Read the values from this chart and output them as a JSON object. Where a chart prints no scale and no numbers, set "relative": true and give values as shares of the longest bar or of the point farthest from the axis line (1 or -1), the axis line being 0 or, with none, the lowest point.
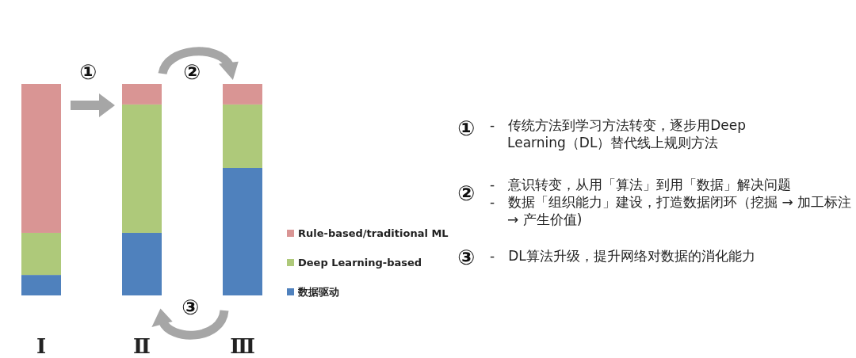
{
  "chart_data": {
    "type": "bar",
    "stacked": true,
    "relative": true,
    "legend": "right",
    "categories": [
      "Ⅰ",
      "Ⅱ",
      "Ⅲ"
    ],
    "series": [
      {
        "name": "数据驱动",
        "color": "#4f81bd",
        "values": [
          0.097,
          0.296,
          0.603
        ]
      },
      {
        "name": "Deep Learning-based",
        "color": "#aec97a",
        "values": [
          0.199,
          0.607,
          0.3
        ]
      },
      {
        "name": "Rule-based/traditional ML",
        "color": "#d99594",
        "values": [
          0.704,
          0.097,
          0.097
        ]
      }
    ],
    "annotations": [
      "①",
      "②",
      "③",
      "①",
      "-　传统方法到学习方法转变，逐步用Deep Learning（DL）替代线上规则方法",
      "②",
      "-　意识转变，从用「算法」到用「数据」解决问题",
      "-　数据「组织能力」建设，打造数据闭环（挖掘 → 加工标注 → 产生价值)",
      "③",
      "-　DL算法升级，提升网络对数据的消化能力"
    ]
  }
}
